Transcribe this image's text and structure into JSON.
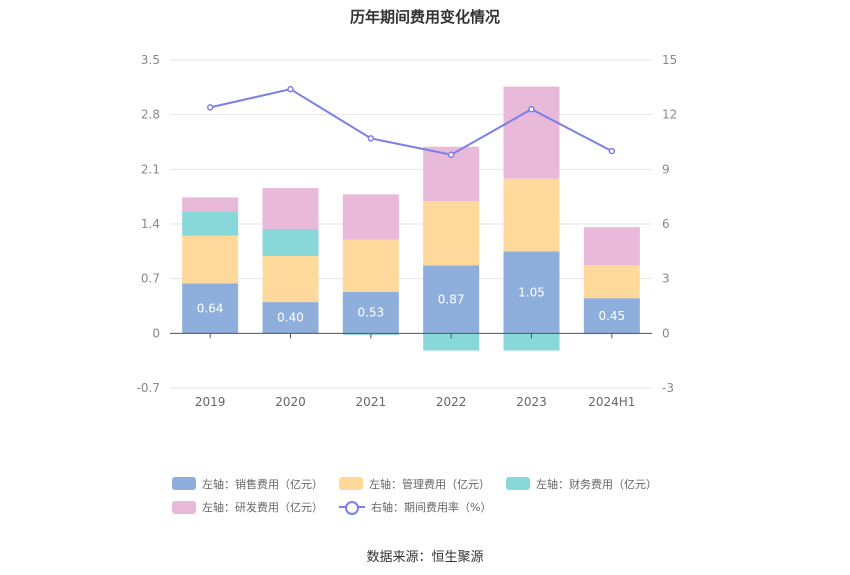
{
  "title": "历年期间费用变化情况",
  "source": "数据来源：恒生聚源",
  "chart_data": {
    "type": "bar",
    "stacked": true,
    "categories": [
      "2019",
      "2020",
      "2021",
      "2022",
      "2023",
      "2024H1"
    ],
    "left_axis": {
      "min": -0.7,
      "max": 3.5,
      "ticks": [
        "3.5",
        "2.8",
        "2.1",
        "1.4",
        "0.7",
        "0",
        "-0.7"
      ]
    },
    "right_axis": {
      "min": -3,
      "max": 15,
      "ticks": [
        "15",
        "12",
        "9",
        "6",
        "3",
        "0",
        "-3"
      ]
    },
    "grid": true,
    "legend_position": "bottom",
    "series": [
      {
        "name": "左轴：销售费用（亿元）",
        "axis": "left",
        "color": "#8eaedc",
        "values": [
          0.64,
          0.4,
          0.53,
          0.87,
          1.05,
          0.45
        ],
        "labels": [
          "0.64",
          "0.40",
          "0.53",
          "0.87",
          "1.05",
          "0.45"
        ]
      },
      {
        "name": "左轴：管理费用（亿元）",
        "axis": "left",
        "color": "#fed99b",
        "values": [
          0.61,
          0.59,
          0.67,
          0.82,
          0.93,
          0.42
        ]
      },
      {
        "name": "左轴：财务费用（亿元）",
        "axis": "left",
        "color": "#88d7d9",
        "values": [
          0.31,
          0.34,
          -0.02,
          -0.22,
          -0.22,
          -0.01
        ]
      },
      {
        "name": "左轴：研发费用（亿元）",
        "axis": "left",
        "color": "#e9b9d9",
        "values": [
          0.18,
          0.53,
          0.58,
          0.7,
          1.18,
          0.49
        ]
      },
      {
        "name": "右轴：期间费用率（%）",
        "axis": "right",
        "type": "line",
        "color": "#7b7fe8",
        "values": [
          12.4,
          13.4,
          10.7,
          9.8,
          12.3,
          10.0
        ]
      }
    ]
  }
}
